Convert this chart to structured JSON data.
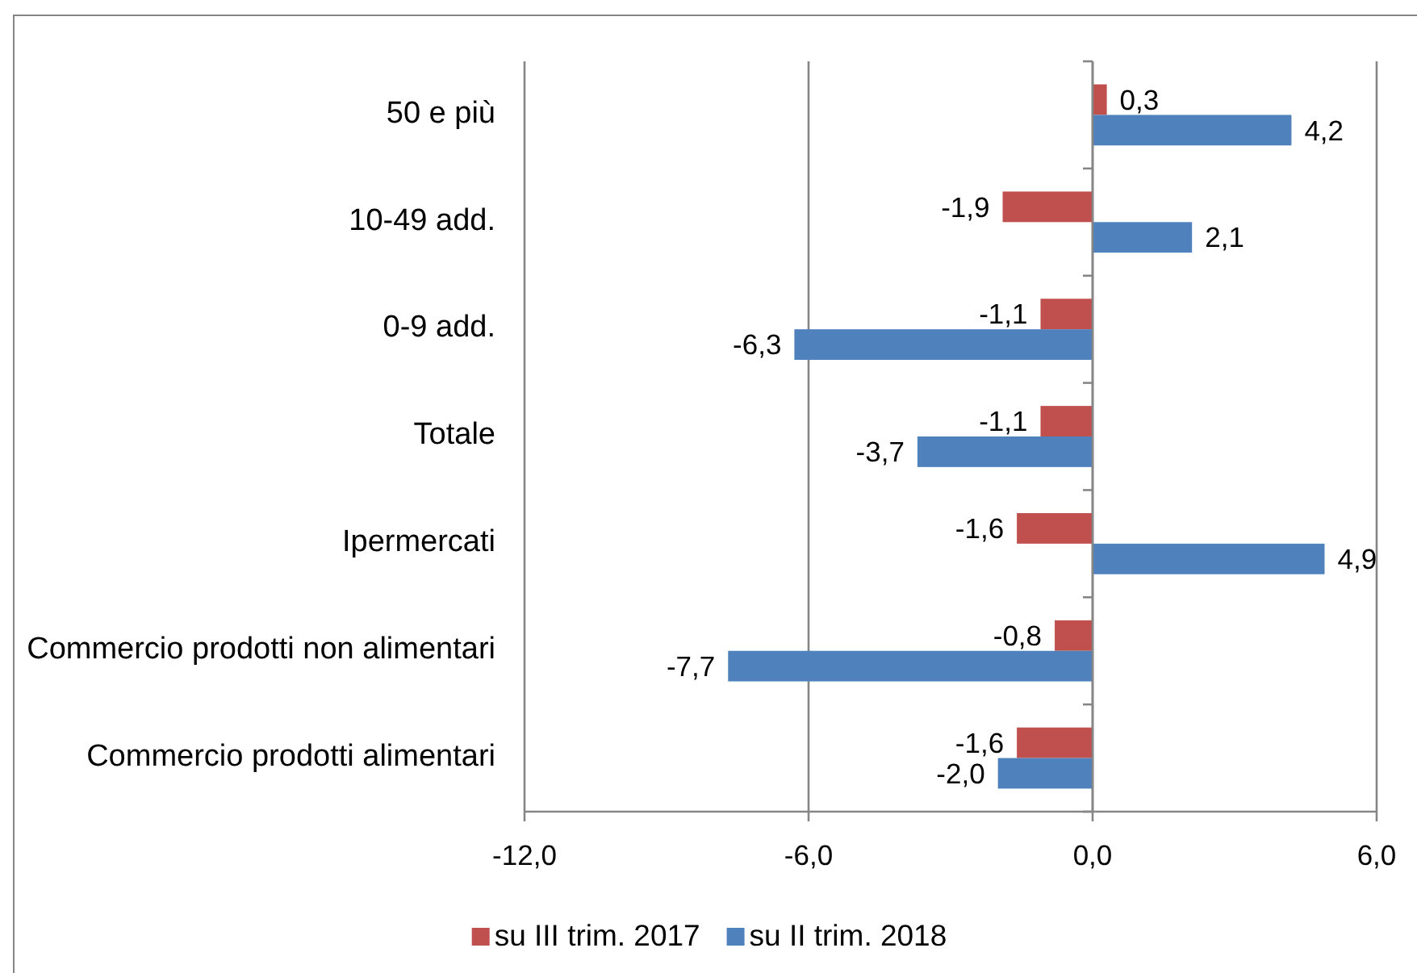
{
  "chart_data": {
    "type": "bar",
    "orientation": "horizontal",
    "categories": [
      "50 e più",
      "10-49 add.",
      "0-9 add.",
      "Totale",
      "Ipermercati",
      "Commercio prodotti non alimentari",
      "Commercio prodotti alimentari"
    ],
    "series": [
      {
        "name": "su III trim. 2017",
        "color": "#c0504d",
        "values": [
          0.3,
          -1.9,
          -1.1,
          -1.1,
          -1.6,
          -0.8,
          -1.6
        ],
        "value_labels": [
          "0,3",
          "-1,9",
          "-1,1",
          "-1,1",
          "-1,6",
          "-0,8",
          "-1,6"
        ]
      },
      {
        "name": "su II trim. 2018",
        "color": "#4f81bd",
        "values": [
          4.2,
          2.1,
          -6.3,
          -3.7,
          4.9,
          -7.7,
          -2.0
        ],
        "value_labels": [
          "4,2",
          "2,1",
          "-6,3",
          "-3,7",
          "4,9",
          "-7,7",
          "-2,0"
        ]
      }
    ],
    "xlim": [
      -12,
      6
    ],
    "xticks": [
      {
        "value": -12,
        "label": "-12,0"
      },
      {
        "value": -6,
        "label": "-6,0"
      },
      {
        "value": 0,
        "label": "0,0"
      },
      {
        "value": 6,
        "label": "6,0"
      }
    ],
    "grid": "x",
    "legend": "bottom"
  }
}
